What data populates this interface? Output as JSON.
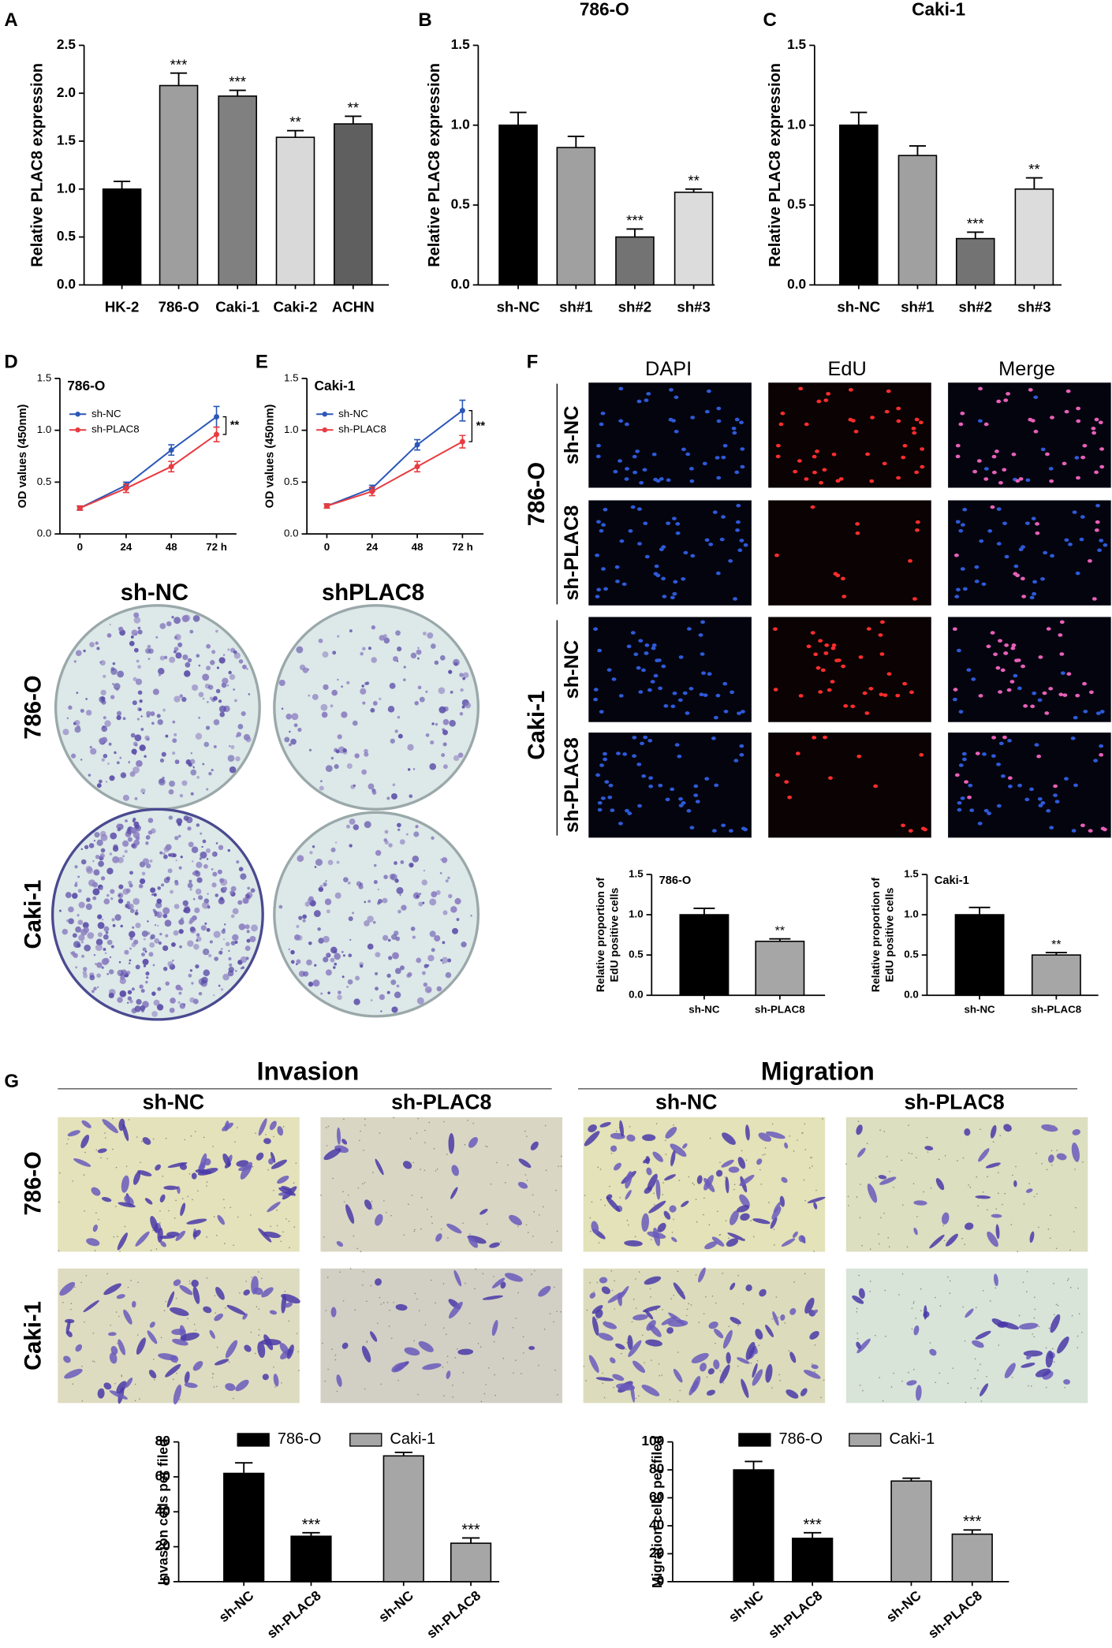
{
  "panel_letters": [
    "A",
    "B",
    "C",
    "D",
    "E",
    "F",
    "G"
  ],
  "colony": {
    "columns": [
      "sh-NC",
      "shPLAC8"
    ],
    "rows": [
      "786-O",
      "Caki-1"
    ]
  },
  "edu": {
    "columns": [
      "DAPI",
      "EdU",
      "Merge"
    ],
    "groups": [
      {
        "name": "786-O",
        "rows": [
          "sh-NC",
          "sh-PLAC8"
        ]
      },
      {
        "name": "Caki-1",
        "rows": [
          "sh-NC",
          "sh-PLAC8"
        ]
      }
    ]
  },
  "transwell": {
    "assays": [
      {
        "name": "Invasion",
        "columns": [
          "sh-NC",
          "sh-PLAC8"
        ]
      },
      {
        "name": "Migration",
        "columns": [
          "sh-NC",
          "sh-PLAC8"
        ]
      }
    ],
    "rows": [
      "786-O",
      "Caki-1"
    ]
  },
  "chart_data": [
    {
      "type": "bar",
      "ylabel": "Relative PLAC8 expression",
      "categories": [
        "HK-2",
        "786-O",
        "Caki-1",
        "Caki-2",
        "ACHN"
      ],
      "values": [
        1.0,
        2.08,
        1.97,
        1.54,
        1.68
      ],
      "errors": [
        0.08,
        0.13,
        0.06,
        0.07,
        0.08
      ],
      "annotations": [
        null,
        "***",
        "***",
        "**",
        "**"
      ],
      "colors": [
        "#000000",
        "#9e9e9e",
        "#808080",
        "#d9d9d9",
        "#5f5f5f"
      ],
      "ylim": [
        0,
        2.5
      ],
      "yticks": [
        {
          "value": 0,
          "label": "0.0"
        },
        0.5,
        {
          "value": 1,
          "label": "1.0"
        },
        1.5,
        {
          "value": 2,
          "label": "2.0"
        },
        2.5
      ]
    },
    {
      "type": "bar",
      "title": "786-O",
      "ylabel": "Relative PLAC8 expression",
      "categories": [
        "sh-NC",
        "sh#1",
        "sh#2",
        "sh#3"
      ],
      "values": [
        1.0,
        0.86,
        0.3,
        0.58
      ],
      "errors": [
        0.08,
        0.07,
        0.05,
        0.02
      ],
      "annotations": [
        null,
        null,
        "***",
        "**"
      ],
      "colors": [
        "#000000",
        "#a0a0a0",
        "#737373",
        "#dcdcdc"
      ],
      "ylim": [
        0,
        1.5
      ],
      "yticks": [
        {
          "value": 0,
          "label": "0.0"
        },
        0.5,
        {
          "value": 1,
          "label": "1.0"
        },
        1.5
      ]
    },
    {
      "type": "bar",
      "title": "Caki-1",
      "ylabel": "Relative PLAC8 expression",
      "categories": [
        "sh-NC",
        "sh#1",
        "sh#2",
        "sh#3"
      ],
      "values": [
        1.0,
        0.81,
        0.29,
        0.6
      ],
      "errors": [
        0.08,
        0.06,
        0.04,
        0.07
      ],
      "annotations": [
        null,
        null,
        "***",
        "**"
      ],
      "colors": [
        "#000000",
        "#a0a0a0",
        "#737373",
        "#dcdcdc"
      ],
      "ylim": [
        0,
        1.5
      ],
      "yticks": [
        {
          "value": 0,
          "label": "0.0"
        },
        0.5,
        {
          "value": 1,
          "label": "1.0"
        },
        1.5
      ]
    },
    {
      "type": "line",
      "title": "786-O",
      "ylabel": "OD values (450nm)",
      "categories": [
        "0",
        "24",
        "48",
        "72 h"
      ],
      "series": [
        {
          "name": "sh-NC",
          "color": "#2b57b8",
          "values": [
            0.25,
            0.47,
            0.81,
            1.13
          ],
          "errors": [
            0.02,
            0.03,
            0.05,
            0.1
          ]
        },
        {
          "name": "sh-PLAC8",
          "color": "#e83b40",
          "values": [
            0.25,
            0.44,
            0.65,
            0.96
          ],
          "errors": [
            0.02,
            0.04,
            0.05,
            0.07
          ]
        }
      ],
      "annotation": "**",
      "ylim": [
        0,
        1.5
      ],
      "yticks": [
        {
          "value": 0,
          "label": "0.0"
        },
        0.5,
        {
          "value": 1,
          "label": "1.0"
        },
        1.5
      ]
    },
    {
      "type": "line",
      "title": "Caki-1",
      "ylabel": "OD values (450nm)",
      "categories": [
        "0",
        "24",
        "48",
        "72 h"
      ],
      "series": [
        {
          "name": "sh-NC",
          "color": "#2b57b8",
          "values": [
            0.27,
            0.44,
            0.86,
            1.19
          ],
          "errors": [
            0.02,
            0.03,
            0.05,
            0.1
          ]
        },
        {
          "name": "sh-PLAC8",
          "color": "#e83b40",
          "values": [
            0.27,
            0.41,
            0.65,
            0.89
          ],
          "errors": [
            0.02,
            0.04,
            0.05,
            0.06
          ]
        }
      ],
      "annotation": "**",
      "ylim": [
        0,
        1.5
      ],
      "yticks": [
        {
          "value": 0,
          "label": "0.0"
        },
        0.5,
        {
          "value": 1,
          "label": "1.0"
        },
        1.5
      ]
    },
    {
      "type": "bar",
      "title": "786-O",
      "ylabel": [
        "Relative proportion of",
        "EdU positive cells"
      ],
      "categories": [
        "sh-NC",
        "sh-PLAC8"
      ],
      "values": [
        1.0,
        0.67
      ],
      "errors": [
        0.08,
        0.03
      ],
      "annotations": [
        null,
        "**"
      ],
      "colors": [
        "#000000",
        "#a6a6a6"
      ],
      "ylim": [
        0,
        1.5
      ],
      "yticks": [
        {
          "value": 0,
          "label": "0.0"
        },
        0.5,
        {
          "value": 1,
          "label": "1.0"
        },
        1.5
      ]
    },
    {
      "type": "bar",
      "title": "Caki-1",
      "ylabel": [
        "Relative proportion of",
        "EdU positive cells"
      ],
      "categories": [
        "sh-NC",
        "sh-PLAC8"
      ],
      "values": [
        1.0,
        0.5
      ],
      "errors": [
        0.09,
        0.03
      ],
      "annotations": [
        null,
        "**"
      ],
      "colors": [
        "#000000",
        "#a6a6a6"
      ],
      "ylim": [
        0,
        1.5
      ],
      "yticks": [
        {
          "value": 0,
          "label": "0.0"
        },
        0.5,
        {
          "value": 1,
          "label": "1.0"
        },
        1.5
      ]
    },
    {
      "type": "bar",
      "ylabel": "Invasion cells per filed",
      "categories": [
        "sh-NC",
        "sh-PLAC8",
        "sh-NC",
        "sh-PLAC8"
      ],
      "series": [
        {
          "name": "786-O",
          "color": "#000000",
          "values": [
            62,
            26,
            null,
            null
          ],
          "errors": [
            6,
            2,
            null,
            null
          ]
        },
        {
          "name": "Caki-1",
          "color": "#a6a6a6",
          "values": [
            null,
            null,
            72,
            22
          ],
          "errors": [
            null,
            null,
            2,
            3
          ]
        }
      ],
      "annotations": [
        null,
        "***",
        null,
        "***"
      ],
      "ylim": [
        0,
        80
      ],
      "yticks": [
        0,
        20,
        40,
        60,
        80
      ]
    },
    {
      "type": "bar",
      "ylabel": "Migration cells per filed",
      "categories": [
        "sh-NC",
        "sh-PLAC8",
        "sh-NC",
        "sh-PLAC8"
      ],
      "series": [
        {
          "name": "786-O",
          "color": "#000000",
          "values": [
            80,
            31,
            null,
            null
          ],
          "errors": [
            6,
            4,
            null,
            null
          ]
        },
        {
          "name": "Caki-1",
          "color": "#a6a6a6",
          "values": [
            null,
            null,
            72,
            34
          ],
          "errors": [
            null,
            null,
            2,
            3
          ]
        }
      ],
      "annotations": [
        null,
        "***",
        null,
        "***"
      ],
      "ylim": [
        0,
        100
      ],
      "yticks": [
        0,
        20,
        40,
        60,
        80,
        100
      ]
    }
  ]
}
